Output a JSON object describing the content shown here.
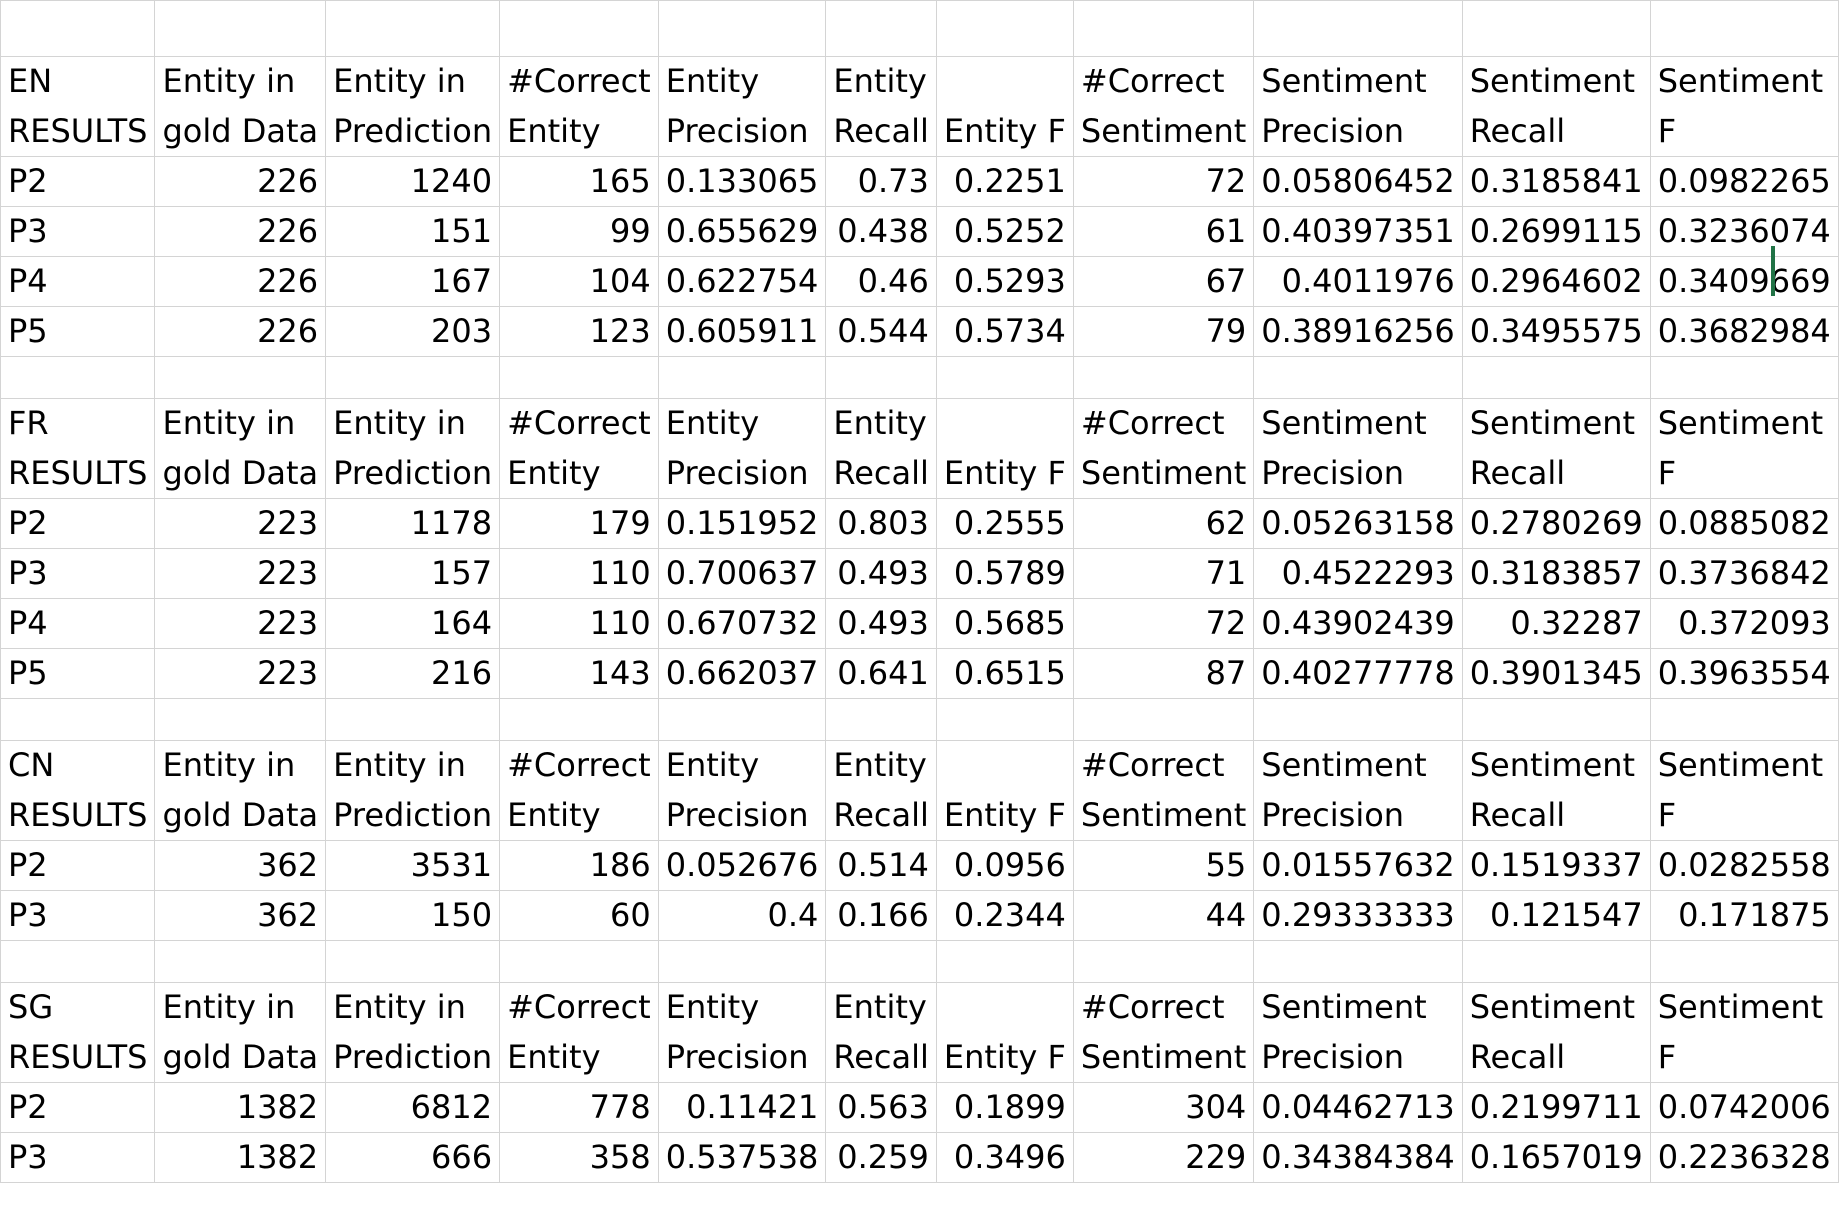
{
  "columns_widths_note": "",
  "sections": [
    {
      "header": [
        [
          "EN",
          "RESULTS"
        ],
        [
          "Entity in",
          "gold Data"
        ],
        [
          "Entity in",
          "Prediction"
        ],
        [
          "#Correct",
          "Entity"
        ],
        [
          "Entity",
          "Precision"
        ],
        [
          "Entity",
          "Recall"
        ],
        [
          "",
          "Entity F"
        ],
        [
          "#Correct",
          "Sentiment"
        ],
        [
          "Sentiment",
          "Precision"
        ],
        [
          "Sentiment",
          "Recall"
        ],
        [
          "Sentiment",
          "F"
        ]
      ],
      "rows": [
        [
          "P2",
          "226",
          "1240",
          "165",
          "0.133065",
          "0.73",
          "0.2251",
          "72",
          "0.05806452",
          "0.3185841",
          "0.0982265"
        ],
        [
          "P3",
          "226",
          "151",
          "99",
          "0.655629",
          "0.438",
          "0.5252",
          "61",
          "0.40397351",
          "0.2699115",
          "0.3236074"
        ],
        [
          "P4",
          "226",
          "167",
          "104",
          "0.622754",
          "0.46",
          "0.5293",
          "67",
          "0.4011976",
          "0.2964602",
          "0.3409669"
        ],
        [
          "P5",
          "226",
          "203",
          "123",
          "0.605911",
          "0.544",
          "0.5734",
          "79",
          "0.38916256",
          "0.3495575",
          "0.3682984"
        ]
      ]
    },
    {
      "header": [
        [
          "FR",
          "RESULTS"
        ],
        [
          "Entity in",
          "gold Data"
        ],
        [
          "Entity in",
          "Prediction"
        ],
        [
          "#Correct",
          "Entity"
        ],
        [
          "Entity",
          "Precision"
        ],
        [
          "Entity",
          "Recall"
        ],
        [
          "",
          "Entity F"
        ],
        [
          "#Correct",
          "Sentiment"
        ],
        [
          "Sentiment",
          "Precision"
        ],
        [
          "Sentiment",
          "Recall"
        ],
        [
          "Sentiment",
          "F"
        ]
      ],
      "rows": [
        [
          "P2",
          "223",
          "1178",
          "179",
          "0.151952",
          "0.803",
          "0.2555",
          "62",
          "0.05263158",
          "0.2780269",
          "0.0885082"
        ],
        [
          "P3",
          "223",
          "157",
          "110",
          "0.700637",
          "0.493",
          "0.5789",
          "71",
          "0.4522293",
          "0.3183857",
          "0.3736842"
        ],
        [
          "P4",
          "223",
          "164",
          "110",
          "0.670732",
          "0.493",
          "0.5685",
          "72",
          "0.43902439",
          "0.32287",
          "0.372093"
        ],
        [
          "P5",
          "223",
          "216",
          "143",
          "0.662037",
          "0.641",
          "0.6515",
          "87",
          "0.40277778",
          "0.3901345",
          "0.3963554"
        ]
      ]
    },
    {
      "header": [
        [
          "CN",
          "RESULTS"
        ],
        [
          "Entity in",
          "gold Data"
        ],
        [
          "Entity in",
          "Prediction"
        ],
        [
          "#Correct",
          "Entity"
        ],
        [
          "Entity",
          "Precision"
        ],
        [
          "Entity",
          "Recall"
        ],
        [
          "",
          "Entity F"
        ],
        [
          "#Correct",
          "Sentiment"
        ],
        [
          "Sentiment",
          "Precision"
        ],
        [
          "Sentiment",
          "Recall"
        ],
        [
          "Sentiment",
          "F"
        ]
      ],
      "rows": [
        [
          "P2",
          "362",
          "3531",
          "186",
          "0.052676",
          "0.514",
          "0.0956",
          "55",
          "0.01557632",
          "0.1519337",
          "0.0282558"
        ],
        [
          "P3",
          "362",
          "150",
          "60",
          "0.4",
          "0.166",
          "0.2344",
          "44",
          "0.29333333",
          "0.121547",
          "0.171875"
        ]
      ]
    },
    {
      "header": [
        [
          "SG",
          "RESULTS"
        ],
        [
          "Entity in",
          "gold Data"
        ],
        [
          "Entity in",
          "Prediction"
        ],
        [
          "#Correct",
          "Entity"
        ],
        [
          "Entity",
          "Precision"
        ],
        [
          "Entity",
          "Recall"
        ],
        [
          "",
          "Entity F"
        ],
        [
          "#Correct",
          "Sentiment"
        ],
        [
          "Sentiment",
          "Precision"
        ],
        [
          "Sentiment",
          "Recall"
        ],
        [
          "Sentiment",
          "F"
        ]
      ],
      "rows": [
        [
          "P2",
          "1382",
          "6812",
          "778",
          "0.11421",
          "0.563",
          "0.1899",
          "304",
          "0.04462713",
          "0.2199711",
          "0.0742006"
        ],
        [
          "P3",
          "1382",
          "666",
          "358",
          "0.537538",
          "0.259",
          "0.3496",
          "229",
          "0.34384384",
          "0.1657019",
          "0.2236328"
        ]
      ]
    }
  ],
  "colors": {
    "gridline": "#d4d4d4",
    "selection": "#217346"
  }
}
